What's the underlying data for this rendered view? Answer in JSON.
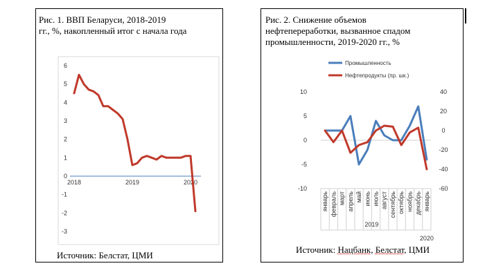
{
  "figure1": {
    "title_line1": "Рис.  1.  ВВП  Беларуси,  2018-2019",
    "title_line2": "гг., %, накопленный итог с начала года",
    "source": "Источник: Белстат, ЦМИ"
  },
  "figure2": {
    "title_line1": "Рис.    2.    Снижение    объемов",
    "title_line2": "нефтепереработки,    вызванное    спадом",
    "title_line3": "промышленности, 2019-2020 гг., %",
    "source_prefix": "Источник: ",
    "source_nb": "Нацбанк",
    "source_sep": ", ",
    "source_bs": "Белстат",
    "source_suffix": ", ЦМИ"
  },
  "chart_data": [
    {
      "type": "line",
      "title": "",
      "y_ticks": [
        "6",
        "5",
        "4",
        "3",
        "2",
        "1",
        "0",
        "-1",
        "-2",
        "-3"
      ],
      "ylim": [
        -3,
        6
      ],
      "x_tick_labels": [
        "2018",
        "2019",
        "2020"
      ],
      "x_tick_positions": [
        0,
        12,
        24
      ],
      "series": [
        {
          "color": "#c0392b",
          "x": [
            0,
            1,
            2,
            3,
            4,
            5,
            6,
            7,
            8,
            9,
            10,
            11,
            12,
            13,
            14,
            15,
            16,
            17,
            18,
            19,
            20,
            21,
            22,
            23,
            24,
            25
          ],
          "values": [
            4.5,
            5.5,
            5.0,
            4.7,
            4.6,
            4.4,
            3.8,
            3.8,
            3.6,
            3.4,
            3.1,
            2.0,
            0.6,
            0.7,
            1.0,
            1.1,
            1.0,
            0.9,
            1.1,
            1.0,
            1.0,
            1.0,
            1.0,
            1.1,
            1.1,
            -1.9
          ]
        }
      ],
      "grid": false
    },
    {
      "type": "line",
      "title": "",
      "legend": [
        "Промышленность",
        "Нефтепродукты (пр. шк.)"
      ],
      "legend_placement": "top-left",
      "y_left_ticks": [
        "10",
        "5",
        "0",
        "-5",
        "-10"
      ],
      "ylim_left": [
        -10,
        10
      ],
      "y_right_ticks": [
        "40",
        "20",
        "0",
        "-20",
        "-40",
        "-60"
      ],
      "ylim_right": [
        -60,
        40
      ],
      "categories": [
        "январь",
        "февраль",
        "март",
        "апрель",
        "май",
        "июнь",
        "июль",
        "август",
        "сентябрь",
        "октябрь",
        "ноябрь",
        "декабрь",
        "январь"
      ],
      "year_labels": [
        "2019",
        "2020"
      ],
      "series": [
        {
          "name": "Промышленность",
          "color": "#4a7ebb",
          "axis": "left",
          "values": [
            2,
            2,
            2,
            5,
            -5,
            -2,
            4,
            1,
            0,
            0,
            3,
            7,
            -4
          ]
        },
        {
          "name": "Нефтепродукты (пр. шк.)",
          "color": "#c0392b",
          "axis": "right",
          "values": [
            0,
            -12,
            0,
            -23,
            -15,
            -12,
            0,
            5,
            4,
            -15,
            -2,
            3,
            -40
          ]
        }
      ]
    }
  ]
}
